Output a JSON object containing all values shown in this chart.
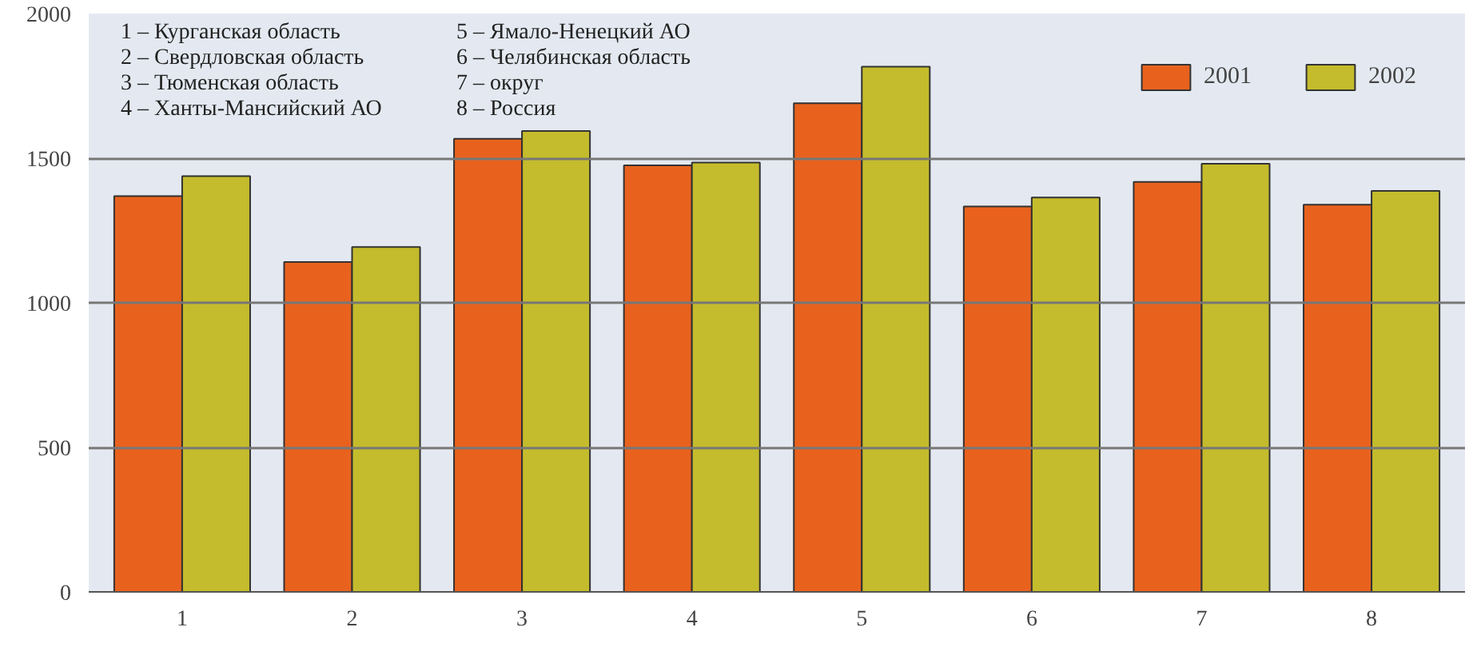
{
  "chart_data": {
    "type": "bar",
    "categories": [
      "1",
      "2",
      "3",
      "4",
      "5",
      "6",
      "7",
      "8"
    ],
    "series": [
      {
        "name": "2001",
        "color": "#e8621e",
        "values": [
          1369,
          1141,
          1567,
          1475,
          1690,
          1333,
          1418,
          1339
        ]
      },
      {
        "name": "2002",
        "color": "#c4bc2c",
        "values": [
          1438,
          1193,
          1594,
          1485,
          1816,
          1364,
          1481,
          1387
        ]
      }
    ],
    "ylim": [
      0,
      2000
    ],
    "yticks": [
      0,
      500,
      1000,
      1500,
      2000
    ],
    "grid": "y",
    "legend": "top right",
    "annotations": [
      "1 – Курганская область",
      "2 – Свердловская область",
      "3 – Тюменская область",
      "4 – Ханты-Мансийский АО",
      "5 – Ямало-Ненецкий АО",
      "6 – Челябинская область",
      "7 – округ",
      "8 – Россия"
    ]
  }
}
